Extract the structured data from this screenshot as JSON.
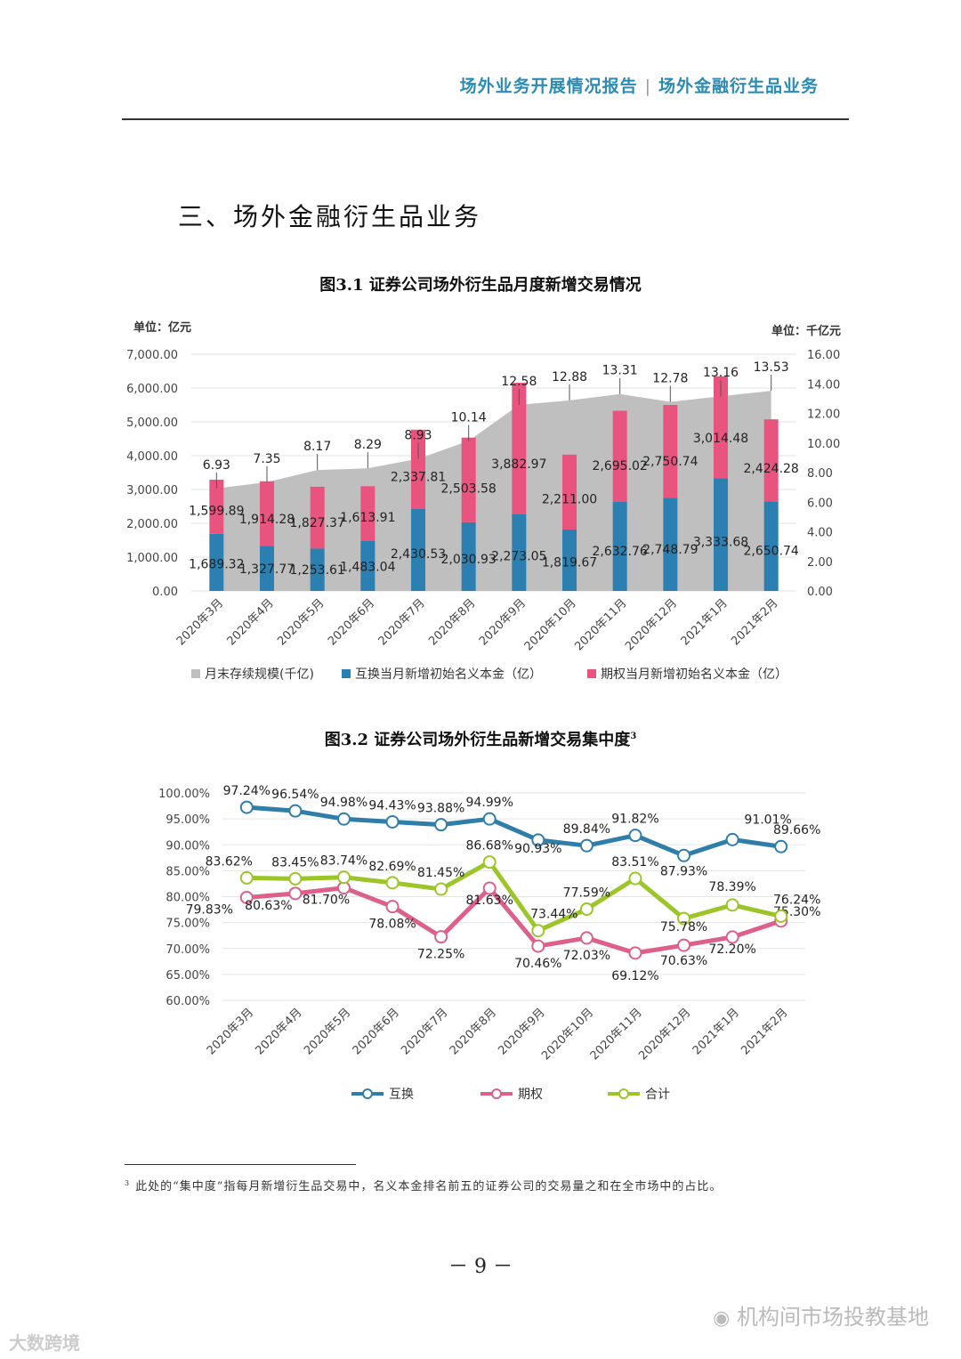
{
  "header": {
    "left": "场外业务开展情况报告",
    "sep": "|",
    "right": "场外金融衍生品业务"
  },
  "section_title": "三、场外金融衍生品业务",
  "fig1": {
    "title": "图3.1 证券公司场外衍生品月度新增交易情况"
  },
  "fig2": {
    "title": "图3.2 证券公司场外衍生品新增交易集中度",
    "footnote_ref": "3"
  },
  "footnote": {
    "ref": "3",
    "text": "此处的“集中度”指每月新增衍生品交易中，名义本金排名前五的证券公司的交易量之和在全市场中的占比。"
  },
  "page_number": "－ 9 －",
  "watermark": {
    "text": "机构间市场投教基地",
    "text2": "大数跨境"
  },
  "colors": {
    "gray": "#c0bfc0",
    "blue": "#2b7fb1",
    "pink": "#e8547d",
    "green": "#9cc527",
    "line_blue": "#2f7eaa",
    "line_pink": "#dd5f8c"
  },
  "chart_data": [
    {
      "type": "bar",
      "title": "图3.1 证券公司场外衍生品月度新增交易情况",
      "left_unit": "单位：亿元",
      "right_unit": "单位：千亿元",
      "categories": [
        "2020年3月",
        "2020年4月",
        "2020年5月",
        "2020年6月",
        "2020年7月",
        "2020年8月",
        "2020年9月",
        "2020年10月",
        "2020年11月",
        "2020年12月",
        "2021年1月",
        "2021年2月"
      ],
      "left_ticks": [
        "0.00",
        "1,000.00",
        "2,000.00",
        "3,000.00",
        "4,000.00",
        "5,000.00",
        "6,000.00",
        "7,000.00"
      ],
      "right_ticks": [
        "0.00",
        "2.00",
        "4.00",
        "6.00",
        "8.00",
        "10.00",
        "12.00",
        "14.00",
        "16.00"
      ],
      "ylim_left": [
        0,
        7000
      ],
      "ylim_right": [
        0,
        16
      ],
      "series": [
        {
          "name": "互换当月新增初始名义本金（亿）",
          "axis": "left",
          "kind": "stacked-bar",
          "values": [
            1689.32,
            1327.77,
            1253.61,
            1483.04,
            2430.53,
            2030.93,
            2273.05,
            1819.67,
            2632.76,
            2748.79,
            3333.68,
            2650.74
          ],
          "labels": [
            "1,689.32",
            "1,327.77",
            "1,253.61",
            "1,483.04",
            "2,430.53",
            "2,030.93",
            "2,273.05",
            "1,819.67",
            "2,632.76",
            "2,748.79",
            "3,333.68",
            "2,650.74"
          ]
        },
        {
          "name": "期权当月新增初始名义本金（亿）",
          "axis": "left",
          "kind": "stacked-bar",
          "values": [
            1599.89,
            1914.28,
            1827.37,
            1613.91,
            2337.81,
            2503.58,
            3882.97,
            2211.0,
            2695.02,
            2750.74,
            3014.48,
            2424.28
          ],
          "labels": [
            "1,599.89",
            "1,914.28",
            "1,827.37",
            "1,613.91",
            "2,337.81",
            "2,503.58",
            "3,882.97",
            "2,211.00",
            "2,695.02",
            "2,750.74",
            "3,014.48",
            "2,424.28"
          ]
        },
        {
          "name": "月末存续规模(千亿)",
          "axis": "right",
          "kind": "area",
          "values": [
            6.93,
            7.35,
            8.17,
            8.29,
            8.93,
            10.14,
            12.58,
            12.88,
            13.31,
            12.78,
            13.16,
            13.53
          ],
          "labels": [
            "6.93",
            "7.35",
            "8.17",
            "8.29",
            "8.93",
            "10.14",
            "12.58",
            "12.88",
            "13.31",
            "12.78",
            "13.16",
            "13.53"
          ]
        }
      ],
      "legend": [
        "月末存续规模(千亿)",
        "互换当月新增初始名义本金（亿）",
        "期权当月新增初始名义本金（亿）"
      ]
    },
    {
      "type": "line",
      "title": "图3.2 证券公司场外衍生品新增交易集中度",
      "categories": [
        "2020年3月",
        "2020年4月",
        "2020年5月",
        "2020年6月",
        "2020年7月",
        "2020年8月",
        "2020年9月",
        "2020年10月",
        "2020年11月",
        "2020年12月",
        "2021年1月",
        "2021年2月"
      ],
      "y_ticks": [
        "60.00%",
        "65.00%",
        "70.00%",
        "75.00%",
        "80.00%",
        "85.00%",
        "90.00%",
        "95.00%",
        "100.00%"
      ],
      "ylim": [
        60,
        100
      ],
      "series": [
        {
          "name": "互换",
          "values": [
            97.24,
            96.54,
            94.98,
            94.43,
            93.88,
            94.99,
            90.93,
            89.84,
            91.82,
            87.93,
            91.01,
            89.66
          ],
          "labels": [
            "97.24%",
            "96.54%",
            "94.98%",
            "94.43%",
            "93.88%",
            "94.99%",
            "90.93%",
            "89.84%",
            "91.82%",
            "87.93%",
            "91.01%",
            "89.66%"
          ]
        },
        {
          "name": "期权",
          "values": [
            79.83,
            80.63,
            81.7,
            78.08,
            72.25,
            81.63,
            70.46,
            72.03,
            69.12,
            70.63,
            72.2,
            75.3
          ],
          "labels": [
            "79.83%",
            "80.63%",
            "81.70%",
            "78.08%",
            "72.25%",
            "81.63%",
            "70.46%",
            "72.03%",
            "69.12%",
            "70.63%",
            "72.20%",
            "75.30%"
          ]
        },
        {
          "name": "合计",
          "values": [
            83.62,
            83.45,
            83.74,
            82.69,
            81.45,
            86.68,
            73.44,
            77.59,
            83.51,
            75.78,
            78.39,
            76.24
          ],
          "labels": [
            "83.62%",
            "83.45%",
            "83.74%",
            "82.69%",
            "81.45%",
            "86.68%",
            "73.44%",
            "77.59%",
            "83.51%",
            "75.78%",
            "78.39%",
            "76.24%"
          ]
        }
      ],
      "legend": [
        "互换",
        "期权",
        "合计"
      ]
    }
  ]
}
